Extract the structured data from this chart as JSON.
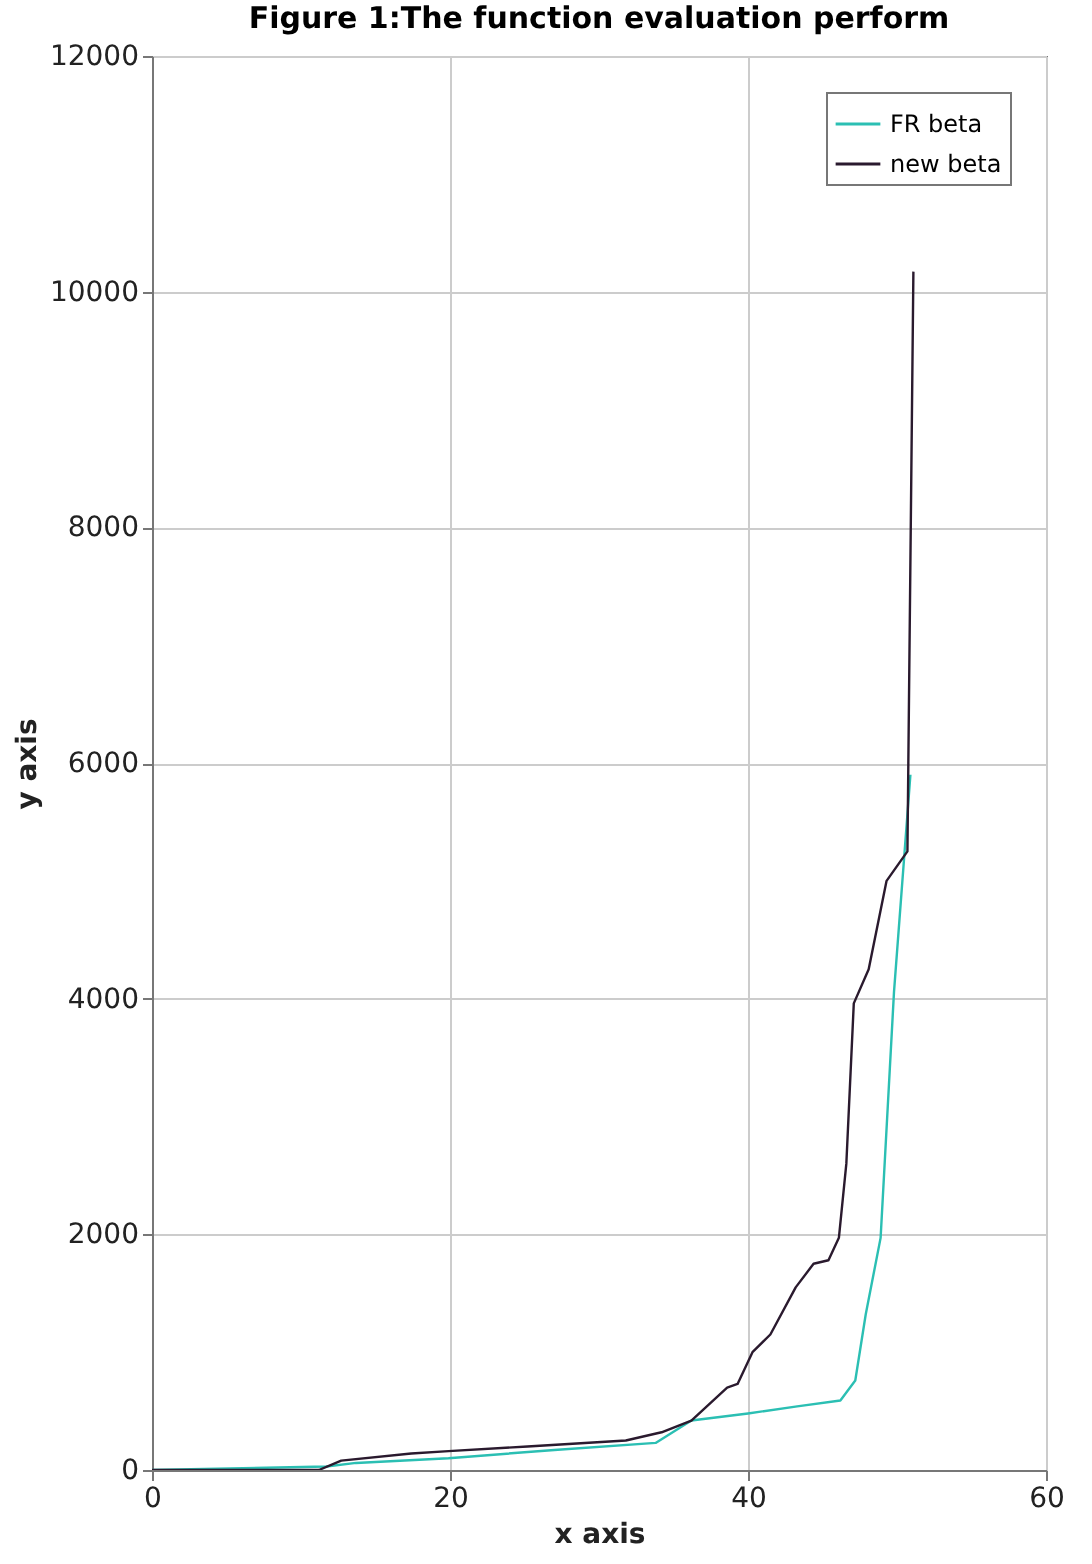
{
  "chart_data": {
    "type": "line",
    "title": "Figure 1:The function evaluation perform",
    "xlabel": "x axis",
    "ylabel": "y axis",
    "xlim": [
      0,
      60
    ],
    "xticks": [
      0,
      20,
      40,
      60
    ],
    "ylim": [
      0,
      12000
    ],
    "yticks": [
      0,
      2000,
      4000,
      6000,
      8000,
      10000,
      12000
    ],
    "grid": true,
    "legend": "top right",
    "series": [
      {
        "name": "FR beta",
        "color": "#2bbfb3",
        "x": [
          0,
          11.7,
          13.7,
          19.9,
          27,
          33.8,
          36.2,
          40,
          43.3,
          46.2,
          47.2,
          47.9,
          48.9,
          49.8,
          50.9
        ],
        "values": [
          0,
          30,
          60,
          100,
          170,
          230,
          420,
          480,
          540,
          590,
          760,
          1320,
          1970,
          4060,
          5900
        ]
      },
      {
        "name": "new beta",
        "color": "#2a1a2e",
        "x": [
          0,
          11.2,
          12.7,
          17.4,
          19.9,
          25.2,
          31.8,
          34.2,
          36.2,
          38.6,
          39.3,
          40.3,
          41.5,
          43.2,
          44.4,
          45.4,
          46.1,
          46.6,
          47.1,
          48.1,
          49.3,
          50.7,
          51.1
        ],
        "values": [
          0,
          0,
          80,
          140,
          160,
          200,
          250,
          320,
          420,
          700,
          730,
          1000,
          1150,
          1550,
          1750,
          1780,
          1970,
          2600,
          3960,
          4250,
          5000,
          5250,
          10170
        ]
      }
    ]
  }
}
